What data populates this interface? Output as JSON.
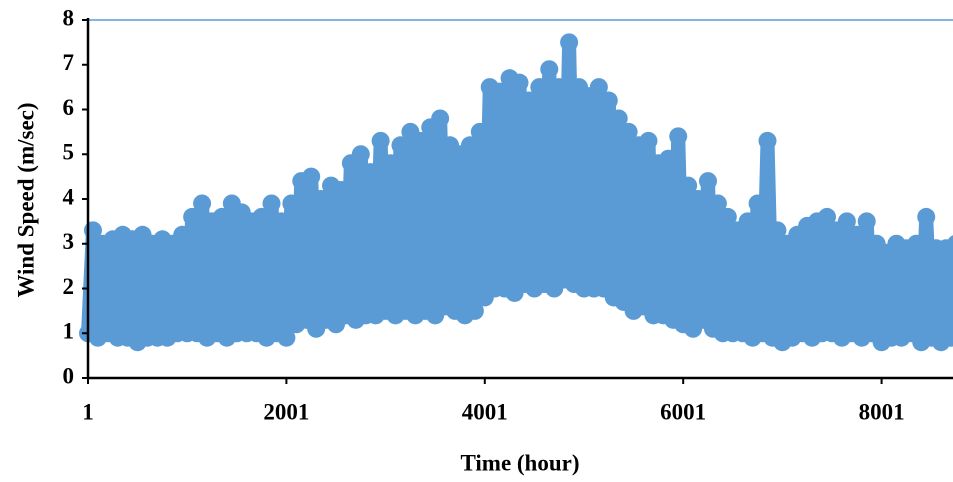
{
  "chart_data": {
    "type": "line",
    "x_label": "Time (hour)",
    "y_label": "Wind Speed (m/sec)",
    "xlim": [
      1,
      8721
    ],
    "xticks": [
      1,
      2001,
      4001,
      6001,
      8001
    ],
    "ylim": [
      0,
      8
    ],
    "yticks": [
      0,
      1,
      2,
      3,
      4,
      5,
      6,
      7,
      8
    ],
    "color": "#5b9bd5",
    "markers": true,
    "grid": false,
    "x": [
      1,
      51,
      101,
      151,
      201,
      251,
      301,
      351,
      401,
      451,
      501,
      551,
      601,
      651,
      701,
      751,
      801,
      851,
      901,
      951,
      1001,
      1051,
      1101,
      1151,
      1201,
      1251,
      1301,
      1351,
      1401,
      1451,
      1501,
      1551,
      1601,
      1651,
      1701,
      1751,
      1801,
      1851,
      1901,
      1951,
      2001,
      2051,
      2101,
      2151,
      2201,
      2251,
      2301,
      2351,
      2401,
      2451,
      2501,
      2551,
      2601,
      2651,
      2701,
      2751,
      2801,
      2851,
      2901,
      2951,
      3001,
      3051,
      3101,
      3151,
      3201,
      3251,
      3301,
      3351,
      3401,
      3451,
      3501,
      3551,
      3601,
      3651,
      3701,
      3751,
      3801,
      3851,
      3901,
      3951,
      4001,
      4051,
      4101,
      4151,
      4201,
      4251,
      4301,
      4351,
      4401,
      4451,
      4501,
      4551,
      4601,
      4651,
      4701,
      4751,
      4801,
      4851,
      4901,
      4951,
      5001,
      5051,
      5101,
      5151,
      5201,
      5251,
      5301,
      5351,
      5401,
      5451,
      5501,
      5551,
      5601,
      5651,
      5701,
      5751,
      5801,
      5851,
      5901,
      5951,
      6001,
      6051,
      6101,
      6151,
      6201,
      6251,
      6301,
      6351,
      6401,
      6451,
      6501,
      6551,
      6601,
      6651,
      6701,
      6751,
      6801,
      6851,
      6901,
      6951,
      7001,
      7051,
      7101,
      7151,
      7201,
      7251,
      7301,
      7351,
      7401,
      7451,
      7501,
      7551,
      7601,
      7651,
      7701,
      7751,
      7801,
      7851,
      7901,
      7951,
      8001,
      8051,
      8101,
      8151,
      8201,
      8251,
      8301,
      8351,
      8401,
      8451,
      8501,
      8551,
      8601,
      8651,
      8701,
      8751
    ],
    "values": [
      1.0,
      3.3,
      0.9,
      3.0,
      1.0,
      3.1,
      0.9,
      3.2,
      0.9,
      3.1,
      0.8,
      3.2,
      0.9,
      3.0,
      0.9,
      3.1,
      0.9,
      3.0,
      1.0,
      3.2,
      1.0,
      3.6,
      1.0,
      3.9,
      0.9,
      3.5,
      1.0,
      3.6,
      0.9,
      3.9,
      1.0,
      3.7,
      1.0,
      3.5,
      1.0,
      3.6,
      0.9,
      3.9,
      1.0,
      3.5,
      0.9,
      3.9,
      1.2,
      4.4,
      1.3,
      4.5,
      1.1,
      4.0,
      1.3,
      4.3,
      1.2,
      4.2,
      1.4,
      4.8,
      1.3,
      5.0,
      1.4,
      4.6,
      1.4,
      5.3,
      1.5,
      4.8,
      1.4,
      5.2,
      1.5,
      5.5,
      1.4,
      5.3,
      1.5,
      5.6,
      1.4,
      5.8,
      1.6,
      5.2,
      1.5,
      5.0,
      1.4,
      5.2,
      1.5,
      5.5,
      1.8,
      6.5,
      2.0,
      6.4,
      2.0,
      6.7,
      1.9,
      6.6,
      2.1,
      6.2,
      2.0,
      6.5,
      2.1,
      6.9,
      2.0,
      6.5,
      2.2,
      7.5,
      2.1,
      6.5,
      2.0,
      6.3,
      2.0,
      6.5,
      2.0,
      6.2,
      1.8,
      5.8,
      1.7,
      5.5,
      1.5,
      5.2,
      1.6,
      5.3,
      1.4,
      4.8,
      1.4,
      4.9,
      1.3,
      5.4,
      1.2,
      4.3,
      1.1,
      4.0,
      1.3,
      4.4,
      1.1,
      3.9,
      1.0,
      3.6,
      1.0,
      3.3,
      1.0,
      3.5,
      0.9,
      3.9,
      1.0,
      5.3,
      0.9,
      3.3,
      0.8,
      3.0,
      0.9,
      3.2,
      1.0,
      3.4,
      0.9,
      3.5,
      1.0,
      3.6,
      1.0,
      3.3,
      0.9,
      3.5,
      1.0,
      3.2,
      0.9,
      3.5,
      1.0,
      3.0,
      0.8,
      2.8,
      0.9,
      3.0,
      0.9,
      2.9,
      1.0,
      3.0,
      0.8,
      3.6,
      0.9,
      2.9,
      0.8,
      2.9,
      0.9,
      3.0
    ]
  }
}
